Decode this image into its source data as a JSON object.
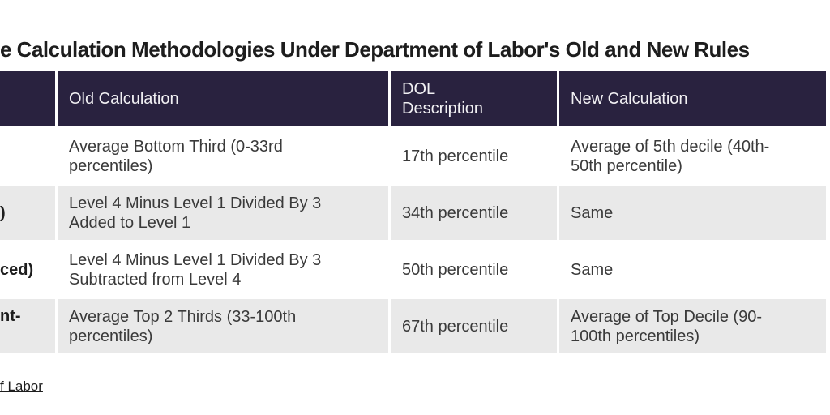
{
  "title": "e Calculation Methodologies Under Department of Labor's Old and New Rules",
  "source_link": "f Labor",
  "colors": {
    "header_bg": "#29223f",
    "header_text": "#f1f0f3",
    "row_bg": "#ffffff",
    "row_alt_bg": "#e9e9e9",
    "body_text": "#3a3a3a",
    "title_text": "#1d1d1d"
  },
  "chart_data": {
    "type": "table",
    "title": "e Calculation Methodologies Under Department of Labor's Old and New Rules",
    "columns": [
      "",
      "Old Calculation",
      "DOL Description",
      "New Calculation"
    ],
    "rows": [
      [
        "",
        "Average Bottom Third (0-33rd percentiles)",
        "17th percentile",
        "Average of 5th decile (40th-50th percentile)"
      ],
      [
        ")",
        "Level 4 Minus Level 1 Divided By 3 Added to Level 1",
        "34th percentile",
        "Same"
      ],
      [
        "ced)",
        "Level 4 Minus Level 1 Divided By 3 Subtracted from Level 4",
        "50th percentile",
        "Same"
      ],
      [
        "nt-",
        "Average Top 2 Thirds (33-100th percentiles)",
        "67th percentile",
        "Average of Top Decile (90-100th percentiles)"
      ]
    ],
    "source_text": "f Labor"
  },
  "display": {
    "header": [
      "",
      "Old Calculation",
      "DOL\nDescription",
      "New Calculation"
    ],
    "rows": [
      {
        "label": "",
        "old": "Average Bottom Third (0-33rd\npercentiles)",
        "dol": "17th percentile",
        "new": "Average of 5th decile (40th-\n50th percentile)"
      },
      {
        "label": ")",
        "old": "Level 4 Minus Level 1 Divided By 3\nAdded to Level 1",
        "dol": "34th percentile",
        "new": "Same"
      },
      {
        "label": "ced)",
        "old": "Level 4 Minus Level 1 Divided By 3\nSubtracted from Level 4",
        "dol": "50th percentile",
        "new": "Same"
      },
      {
        "label": "nt-",
        "old": "Average Top 2 Thirds (33-100th\npercentiles)",
        "dol": "67th percentile",
        "new": "Average of Top Decile (90-\n100th percentiles)"
      }
    ]
  }
}
